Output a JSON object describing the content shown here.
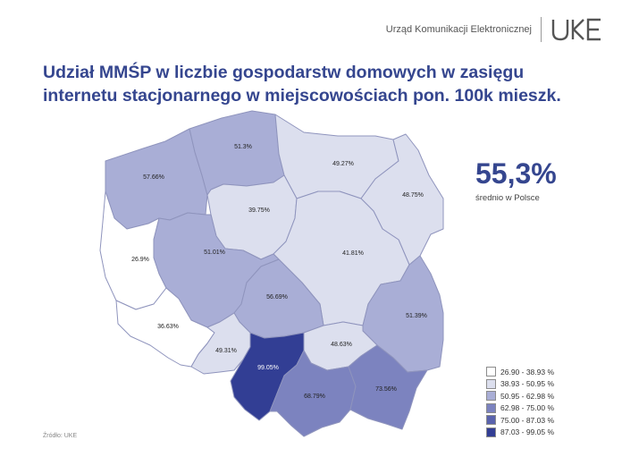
{
  "header": {
    "organization": "Urząd Komunikacji Elektronicznej",
    "logo_icon": "uke-logo-icon",
    "brand_color": "#35468f"
  },
  "title": {
    "line1": "Udział MMŚP w liczbie gospodarstw domowych w zasięgu",
    "line2": "internetu stacjonarnego w miejscowościach pon. 100k mieszk."
  },
  "average": {
    "value": "55,3%",
    "label": "średnio w Polsce"
  },
  "map": {
    "regions": [
      {
        "id": "zachodniopomorskie",
        "value": 57.66,
        "label": "57.66%"
      },
      {
        "id": "pomorskie",
        "value": 51.3,
        "label": "51.3%"
      },
      {
        "id": "warminsko-mazurskie",
        "value": 49.27,
        "label": "49.27%"
      },
      {
        "id": "podlaskie",
        "value": 48.75,
        "label": "48.75%"
      },
      {
        "id": "kujawsko-pomorskie",
        "value": 39.75,
        "label": "39.75%"
      },
      {
        "id": "mazowieckie",
        "value": 41.81,
        "label": "41.81%"
      },
      {
        "id": "lubuskie",
        "value": 26.9,
        "label": "26.9%"
      },
      {
        "id": "wielkopolskie",
        "value": 51.01,
        "label": "51.01%"
      },
      {
        "id": "lodzkie",
        "value": 56.69,
        "label": "56.69%"
      },
      {
        "id": "lubelskie",
        "value": 51.39,
        "label": "51.39%"
      },
      {
        "id": "dolnoslaskie",
        "value": 36.63,
        "label": "36.63%"
      },
      {
        "id": "opolskie",
        "value": 49.31,
        "label": "49.31%"
      },
      {
        "id": "swietokrzyskie",
        "value": 48.63,
        "label": "48.63%"
      },
      {
        "id": "slaskie",
        "value": 99.05,
        "label": "99.05%"
      },
      {
        "id": "malopolskie",
        "value": 68.79,
        "label": "68.79%"
      },
      {
        "id": "podkarpackie",
        "value": 73.56,
        "label": "73.56%"
      }
    ]
  },
  "legend": {
    "items": [
      {
        "label": "26.90 - 38.93 %",
        "color": "#ffffff"
      },
      {
        "label": "38.93 - 50.95 %",
        "color": "#dcdfee"
      },
      {
        "label": "50.95 - 62.98 %",
        "color": "#a9aed6"
      },
      {
        "label": "62.98 - 75.00 %",
        "color": "#7c83bf"
      },
      {
        "label": "75.00 - 87.03 %",
        "color": "#5a63ad"
      },
      {
        "label": "87.03 - 99.05 %",
        "color": "#323e94"
      }
    ]
  },
  "source": "Źródło: UKE"
}
